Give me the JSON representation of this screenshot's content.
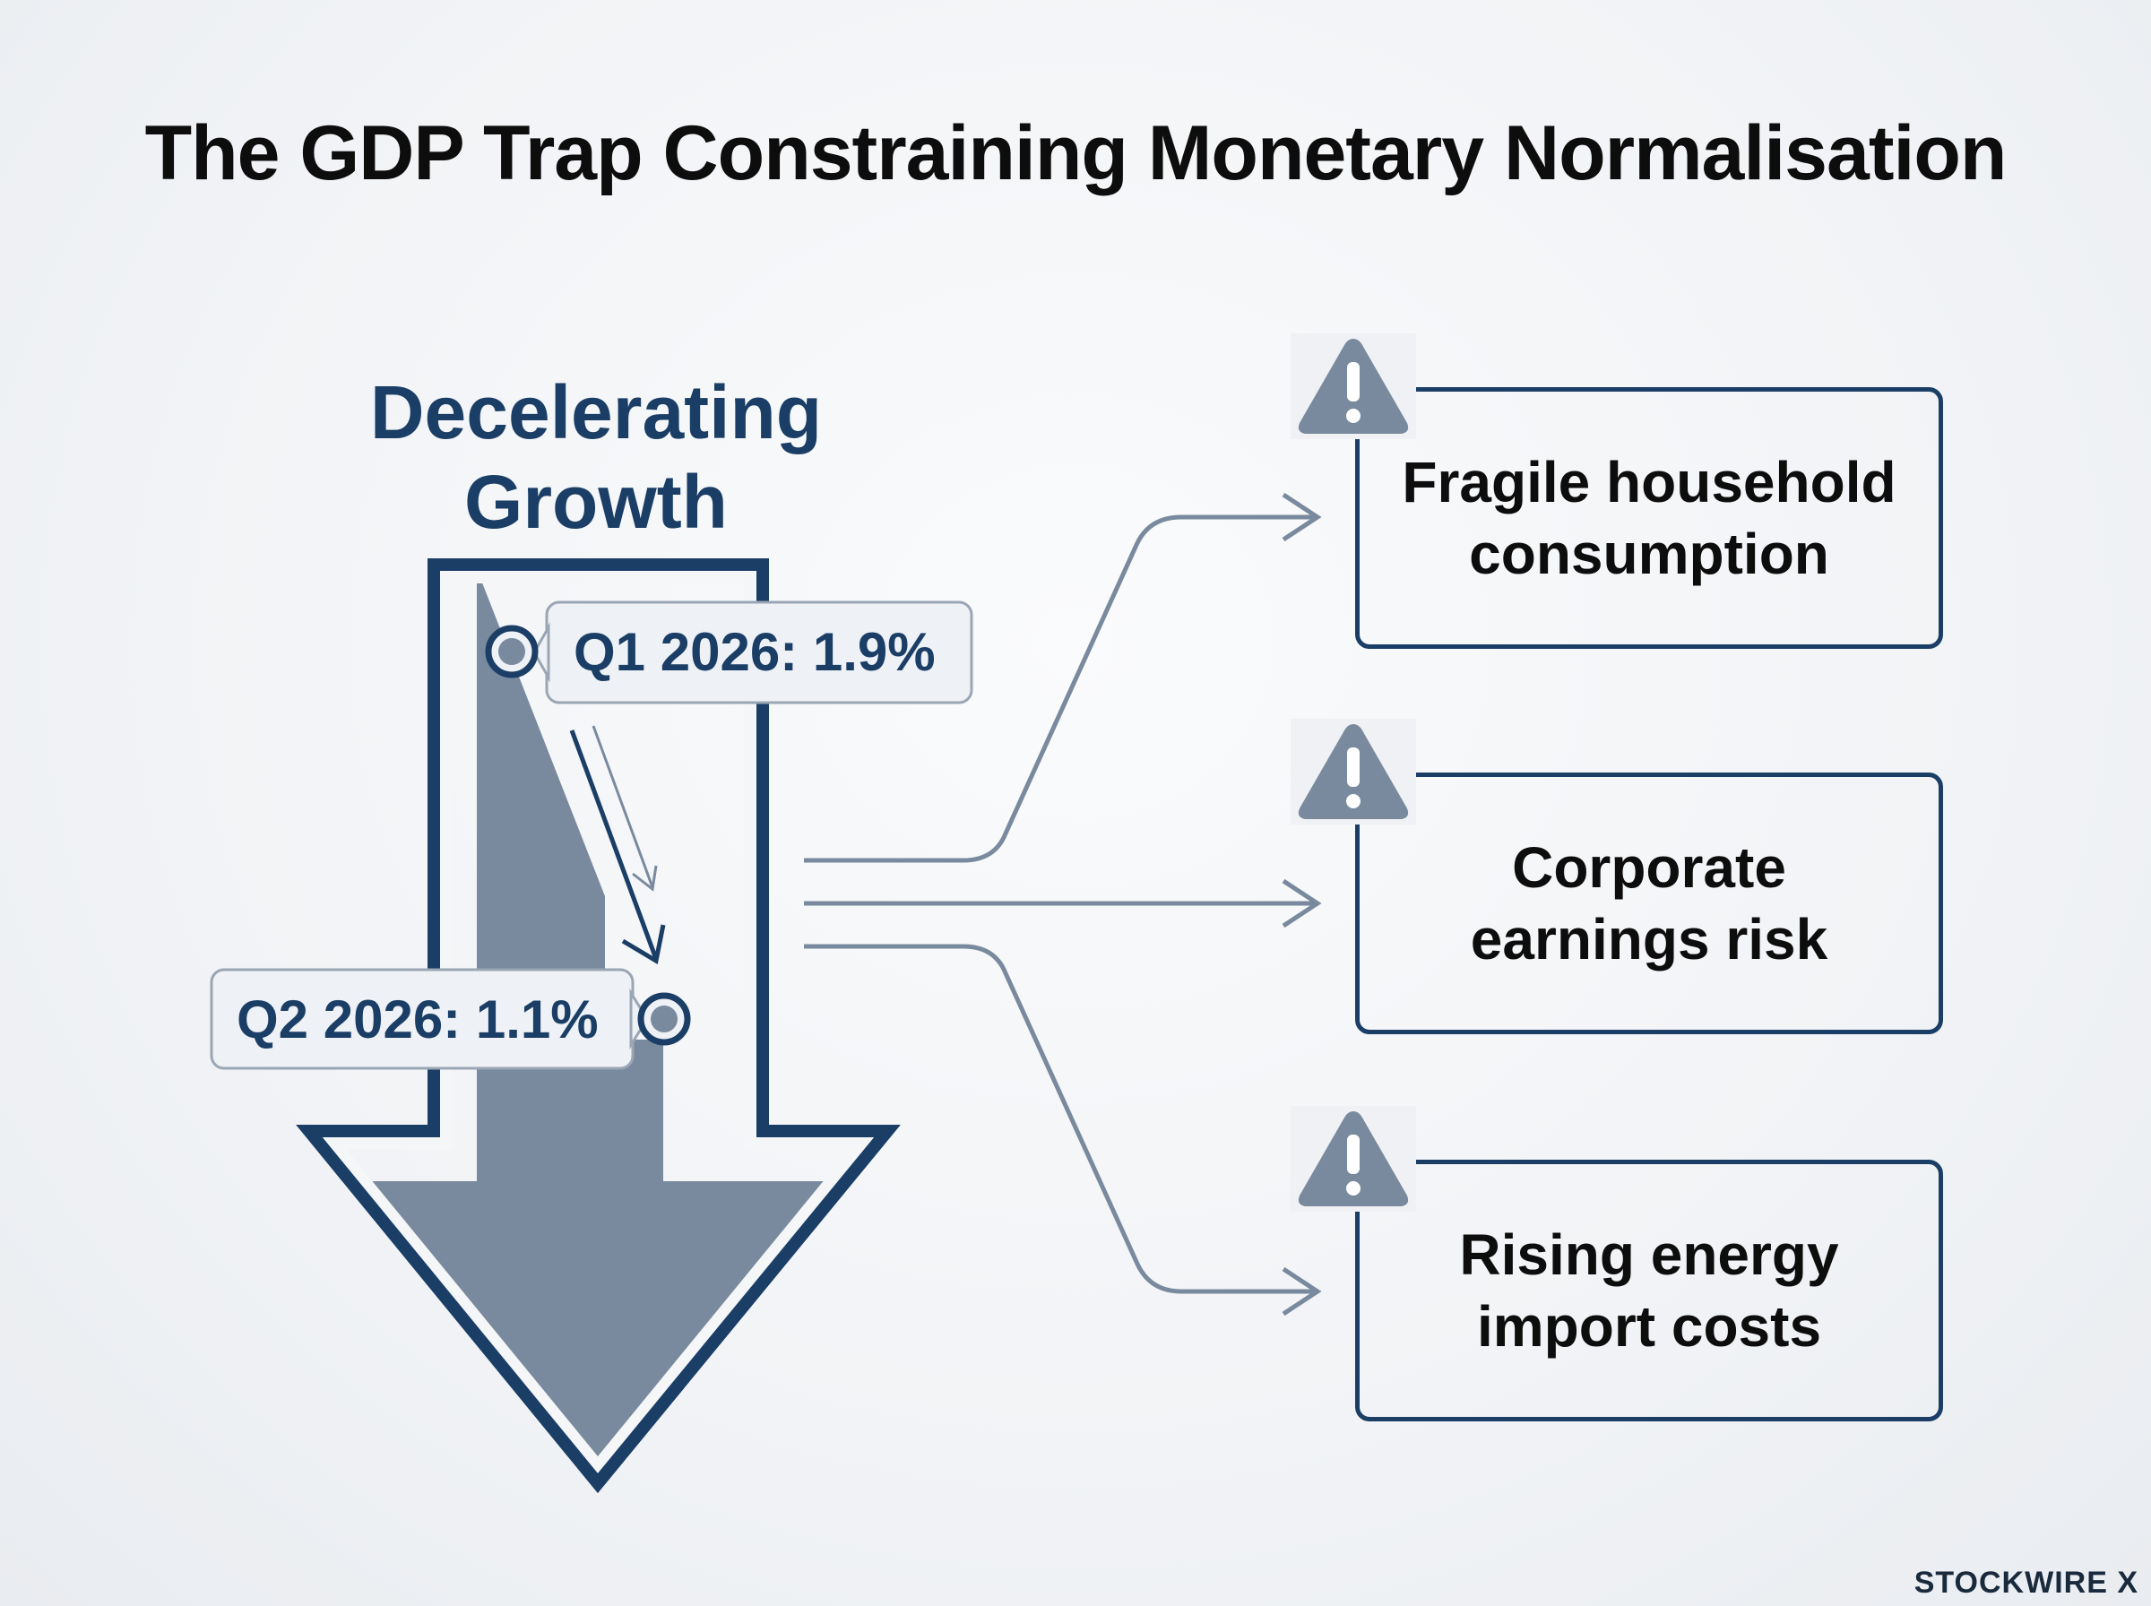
{
  "title": "The GDP Trap Constraining Monetary Normalisation",
  "center": {
    "line1": "Decelerating",
    "line2": "Growth"
  },
  "callouts": {
    "q1": "Q1 2026: 1.9%",
    "q2": "Q2 2026: 1.1%"
  },
  "risks": [
    {
      "line1": "Fragile household",
      "line2": "consumption",
      "icon": "warning-icon"
    },
    {
      "line1": "Corporate",
      "line2": "earnings risk",
      "icon": "warning-icon"
    },
    {
      "line1": "Rising energy",
      "line2": "import costs",
      "icon": "warning-icon"
    }
  ],
  "brand": "STOCKWIRE X",
  "colors": {
    "navy": "#1b3e66",
    "slate": "#7a8a9e",
    "text": "#0d0d0d"
  }
}
